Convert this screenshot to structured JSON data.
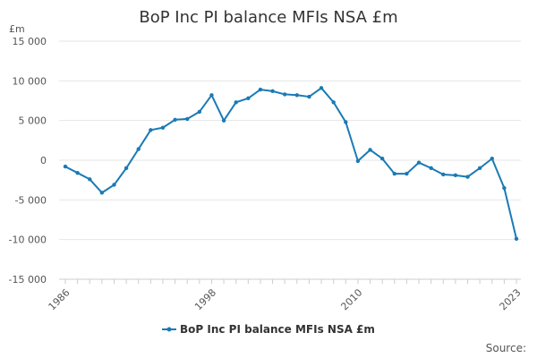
{
  "chart_data": {
    "type": "line",
    "title": "BoP Inc PI balance MFIs NSA £m",
    "unit_label": "£m",
    "x_tick_labels": [
      "1986",
      "1998",
      "2010",
      "2023"
    ],
    "y_tick_labels": [
      "15 000",
      "10 000",
      "5 000",
      "0",
      "-5 000",
      "-10 000",
      "-15 000"
    ],
    "y_tick_values": [
      15000,
      10000,
      5000,
      0,
      -5000,
      -10000,
      -15000
    ],
    "ylim": [
      -15000,
      15000
    ],
    "xlim": [
      1986,
      2023
    ],
    "grid": true,
    "legend_position": "bottom",
    "source_label": "Source:",
    "colors": {
      "line": "#1a7ab5",
      "grid": "#e6e6e6",
      "axis": "#cccccc"
    },
    "series": [
      {
        "name": "BoP Inc PI balance MFIs NSA £m",
        "x": [
          1986,
          1987,
          1988,
          1989,
          1990,
          1991,
          1992,
          1993,
          1994,
          1995,
          1996,
          1997,
          1998,
          1999,
          2000,
          2001,
          2002,
          2003,
          2004,
          2005,
          2006,
          2007,
          2008,
          2009,
          2010,
          2011,
          2012,
          2013,
          2014,
          2015,
          2016,
          2017,
          2018,
          2019,
          2020,
          2021,
          2022,
          2023
        ],
        "y": [
          -800,
          -1600,
          -2400,
          -4100,
          -3100,
          -1000,
          1400,
          3800,
          4100,
          5100,
          5200,
          6100,
          8200,
          5000,
          7300,
          7800,
          8900,
          8700,
          8300,
          8200,
          8000,
          9100,
          7300,
          4800,
          -100,
          1300,
          200,
          -1700,
          -1700,
          -300,
          -1000,
          -1800,
          -1900,
          -2100,
          -1000,
          200,
          -3500,
          -9900
        ]
      }
    ]
  }
}
